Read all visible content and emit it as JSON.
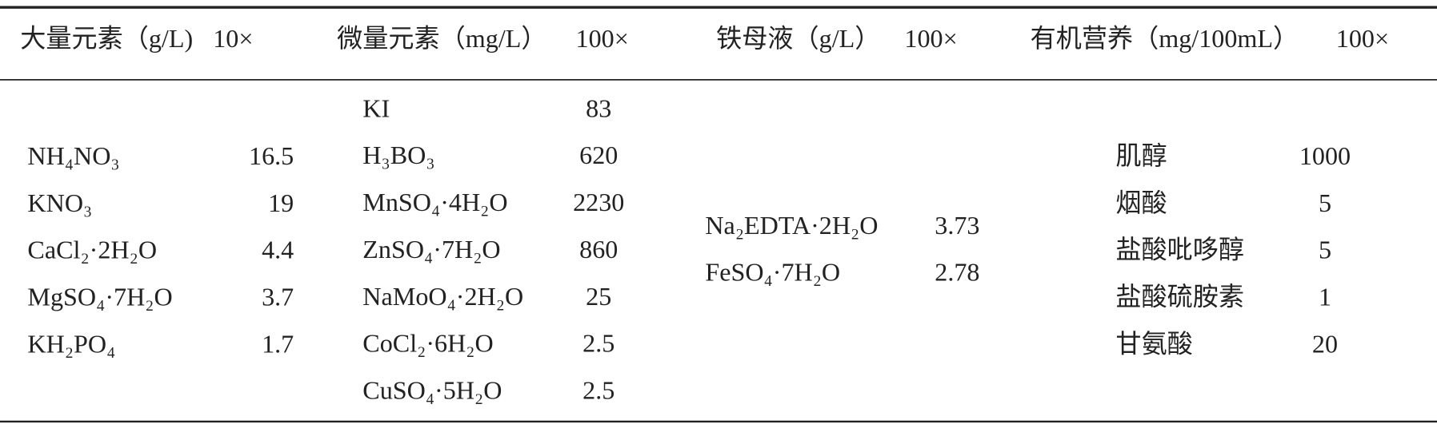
{
  "table": {
    "headers": [
      {
        "title": "大量元素（g/L)",
        "factor": "10×"
      },
      {
        "title": "微量元素（mg/L）",
        "factor": "100×"
      },
      {
        "title": "铁母液（g/L）",
        "factor": "100×"
      },
      {
        "title": "有机营养（mg/100mL）",
        "factor": "100×"
      }
    ],
    "columns": [
      {
        "rows": [
          [
            "NH₄NO₃",
            16.5
          ],
          [
            "KNO₃",
            19
          ],
          [
            "CaCl₂·2H₂O",
            4.4
          ],
          [
            "MgSO₄·7H₂O",
            3.7
          ],
          [
            "KH₂PO₄",
            1.7
          ]
        ]
      },
      {
        "rows": [
          [
            "KI",
            83
          ],
          [
            "H₃BO₃",
            620
          ],
          [
            "MnSO₄·4H₂O",
            2230
          ],
          [
            "ZnSO₄·7H₂O",
            860
          ],
          [
            "NaMoO₄·2H₂O",
            25
          ],
          [
            "CoCl₂·6H₂O",
            2.5
          ],
          [
            "CuSO₄·5H₂O",
            2.5
          ]
        ]
      },
      {
        "rows": [
          [
            "Na₂EDTA·2H₂O",
            3.73
          ],
          [
            "FeSO₄·7H₂O",
            2.78
          ]
        ]
      },
      {
        "rows": [
          [
            "肌醇",
            1000
          ],
          [
            "烟酸",
            5
          ],
          [
            "盐酸吡哆醇",
            5
          ],
          [
            "盐酸硫胺素",
            1
          ],
          [
            "甘氨酸",
            20
          ]
        ]
      }
    ]
  }
}
